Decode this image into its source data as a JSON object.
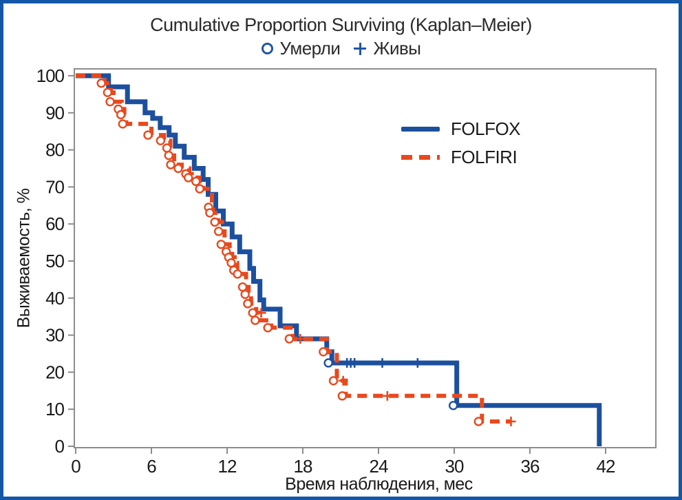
{
  "figure": {
    "border_color": "#1457a7",
    "background": "#ffffff"
  },
  "chart_data": {
    "type": "line",
    "subtype": "kaplan-meier-step",
    "title": "Cumulative Proportion Surviving (Kaplan–Meier)",
    "marker_legend": [
      {
        "symbol": "circle",
        "label": "Умерли"
      },
      {
        "symbol": "plus",
        "label": "Живы"
      }
    ],
    "xlabel": "Время наблюдения, мес",
    "ylabel": "Выживаемость, %",
    "xlim": [
      0,
      46
    ],
    "ylim": [
      0,
      100
    ],
    "xticks": [
      0,
      6,
      12,
      18,
      24,
      30,
      36,
      42
    ],
    "yticks": [
      0,
      10,
      20,
      30,
      40,
      50,
      60,
      70,
      80,
      90,
      100
    ],
    "grid": false,
    "legend_position": "inside-upper-right",
    "frame_color": "#8c8c8c",
    "text_color": "#1a1a1a",
    "series": [
      {
        "name": "FOLFOX",
        "color": "#1c4f9e",
        "line_style": "solid",
        "line_width": 7,
        "steps": [
          [
            0,
            100
          ],
          [
            2.6,
            97
          ],
          [
            4.1,
            93
          ],
          [
            5.5,
            90
          ],
          [
            6.1,
            88.5
          ],
          [
            6.7,
            86
          ],
          [
            7.4,
            84
          ],
          [
            7.9,
            81
          ],
          [
            8.6,
            78
          ],
          [
            9.4,
            75
          ],
          [
            10.1,
            72
          ],
          [
            10.5,
            68
          ],
          [
            11.1,
            63.5
          ],
          [
            11.7,
            60
          ],
          [
            12.4,
            56.5
          ],
          [
            13,
            52.5
          ],
          [
            13.8,
            48
          ],
          [
            14.1,
            44.5
          ],
          [
            14.6,
            39.5
          ],
          [
            14.9,
            37
          ],
          [
            16.2,
            32.5
          ],
          [
            17.5,
            29
          ],
          [
            19.9,
            25.5
          ],
          [
            20.3,
            22.5
          ],
          [
            30.2,
            11
          ],
          [
            41.5,
            0
          ]
        ],
        "event_circles": [
          [
            20.3,
            22.5
          ],
          [
            30.2,
            11
          ]
        ],
        "censored": [
          [
            21.5,
            22.5
          ],
          [
            21.8,
            22.5
          ],
          [
            22.1,
            22.5
          ],
          [
            24.3,
            22.5
          ],
          [
            27.1,
            22.5
          ]
        ]
      },
      {
        "name": "FOLFIRI",
        "color": "#e8491d",
        "line_style": "dashed",
        "line_width": 6,
        "steps": [
          [
            0,
            100
          ],
          [
            2.3,
            98
          ],
          [
            2.8,
            95.5
          ],
          [
            3,
            93
          ],
          [
            3.65,
            91
          ],
          [
            3.85,
            89.5
          ],
          [
            4,
            87
          ],
          [
            6,
            84
          ],
          [
            7,
            82.5
          ],
          [
            7.5,
            80.5
          ],
          [
            7.65,
            78.5
          ],
          [
            7.8,
            76
          ],
          [
            8.4,
            75
          ],
          [
            9,
            73.5
          ],
          [
            9.2,
            72.5
          ],
          [
            9.8,
            71.5
          ],
          [
            10.1,
            69.5
          ],
          [
            10.8,
            64.5
          ],
          [
            10.9,
            63
          ],
          [
            11.3,
            60.5
          ],
          [
            11.6,
            58
          ],
          [
            11.8,
            54.5
          ],
          [
            12.2,
            52.5
          ],
          [
            12.4,
            51
          ],
          [
            12.6,
            49.5
          ],
          [
            12.8,
            47.5
          ],
          [
            13.1,
            46.5
          ],
          [
            13.5,
            43
          ],
          [
            13.7,
            41
          ],
          [
            13.9,
            38.5
          ],
          [
            14.3,
            36
          ],
          [
            14.5,
            34
          ],
          [
            15.5,
            32
          ],
          [
            17.2,
            29
          ],
          [
            19.9,
            25.5
          ],
          [
            20.7,
            17.7
          ],
          [
            21.4,
            13.6
          ],
          [
            32.2,
            6.7
          ],
          [
            34.5,
            6.7
          ]
        ],
        "event_circles": "auto",
        "censored": [
          [
            14.7,
            36
          ],
          [
            17.8,
            29
          ],
          [
            21.2,
            17.7
          ],
          [
            24.7,
            13.6
          ],
          [
            34.5,
            6.7
          ]
        ]
      }
    ]
  }
}
